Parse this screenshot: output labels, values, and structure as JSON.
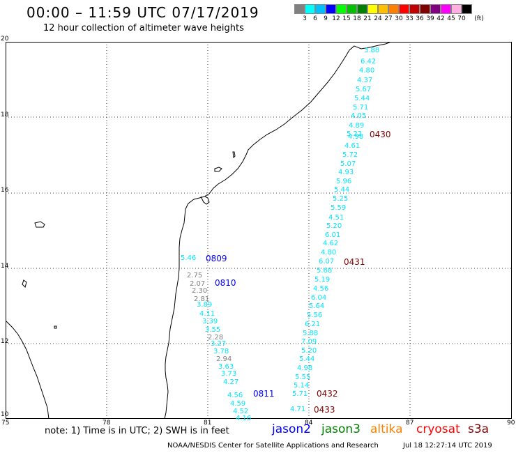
{
  "header": {
    "title": "00:00 – 11:59 UTC 07/17/2019",
    "subtitle": "12 hour collection of altimeter wave heights"
  },
  "legend": {
    "unit": "(ft)",
    "colors": [
      "#808080",
      "#00ffff",
      "#00bfff",
      "#0000ff",
      "#00ff00",
      "#00c000",
      "#008000",
      "#ffff00",
      "#ffc000",
      "#ff8000",
      "#ff0000",
      "#c00000",
      "#800000",
      "#800080",
      "#ff00ff",
      "#ffb0e0",
      "#000000"
    ],
    "values": [
      "3",
      "6",
      "9",
      "12",
      "15",
      "18",
      "21",
      "24",
      "27",
      "30",
      "33",
      "36",
      "39",
      "42",
      "45",
      "70"
    ]
  },
  "axes": {
    "lat_labels": [
      "20",
      "18",
      "16",
      "14",
      "12",
      "10"
    ],
    "lon_labels": [
      "75",
      "78",
      "81",
      "84",
      "87",
      "90"
    ]
  },
  "map": {
    "swh_values": [
      {
        "v": "3.88",
        "c": "#00e6ff"
      },
      {
        "v": "6.42",
        "c": "#00e6ff"
      },
      {
        "v": "4.80",
        "c": "#00e6ff"
      },
      {
        "v": "4.37",
        "c": "#00e6ff"
      },
      {
        "v": "5.67",
        "c": "#00e6ff"
      },
      {
        "v": "5.44",
        "c": "#00e6ff"
      },
      {
        "v": "5.71",
        "c": "#00e6ff"
      },
      {
        "v": "4.05",
        "c": "#00e6ff"
      },
      {
        "v": "4.89",
        "c": "#00e6ff"
      },
      {
        "v": "5.22",
        "c": "#00e6ff"
      },
      {
        "v": "4.98",
        "c": "#00e6ff"
      },
      {
        "v": "4.61",
        "c": "#00e6ff"
      },
      {
        "v": "5.72",
        "c": "#00e6ff"
      },
      {
        "v": "5.07",
        "c": "#00e6ff"
      },
      {
        "v": "4.93",
        "c": "#00e6ff"
      },
      {
        "v": "5.96",
        "c": "#00e6ff"
      },
      {
        "v": "5.44",
        "c": "#00e6ff"
      },
      {
        "v": "5.25",
        "c": "#00e6ff"
      },
      {
        "v": "5.59",
        "c": "#00e6ff"
      },
      {
        "v": "4.51",
        "c": "#00e6ff"
      },
      {
        "v": "5.20",
        "c": "#00e6ff"
      },
      {
        "v": "6.01",
        "c": "#00e6ff"
      },
      {
        "v": "4.62",
        "c": "#00e6ff"
      },
      {
        "v": "4.80",
        "c": "#00e6ff"
      },
      {
        "v": "6.07",
        "c": "#00e6ff"
      },
      {
        "v": "5.68",
        "c": "#00e6ff"
      },
      {
        "v": "5.19",
        "c": "#00e6ff"
      },
      {
        "v": "4.56",
        "c": "#00e6ff"
      },
      {
        "v": "6.04",
        "c": "#00e6ff"
      },
      {
        "v": "5.64",
        "c": "#00e6ff"
      },
      {
        "v": "5.56",
        "c": "#00e6ff"
      },
      {
        "v": "6.21",
        "c": "#00e6ff"
      },
      {
        "v": "5.88",
        "c": "#00e6ff"
      },
      {
        "v": "7.09",
        "c": "#00e6ff"
      },
      {
        "v": "5.20",
        "c": "#00e6ff"
      },
      {
        "v": "5.44",
        "c": "#00e6ff"
      },
      {
        "v": "4.98",
        "c": "#00e6ff"
      },
      {
        "v": "5.55",
        "c": "#00e6ff"
      },
      {
        "v": "5.14",
        "c": "#00e6ff"
      },
      {
        "v": "5.71",
        "c": "#00e6ff"
      },
      {
        "v": "4.71",
        "c": "#00e6ff"
      },
      {
        "v": "5.46",
        "c": "#00e6ff"
      },
      {
        "v": "2.75",
        "c": "#808080"
      },
      {
        "v": "2.07",
        "c": "#808080"
      },
      {
        "v": "2.30",
        "c": "#808080"
      },
      {
        "v": "2.81",
        "c": "#808080"
      },
      {
        "v": "3.89",
        "c": "#00e6ff"
      },
      {
        "v": "4.11",
        "c": "#00e6ff"
      },
      {
        "v": "3.39",
        "c": "#00e6ff"
      },
      {
        "v": "3.55",
        "c": "#00e6ff"
      },
      {
        "v": "2.28",
        "c": "#808080"
      },
      {
        "v": "3.27",
        "c": "#00e6ff"
      },
      {
        "v": "3.78",
        "c": "#00e6ff"
      },
      {
        "v": "2.94",
        "c": "#808080"
      },
      {
        "v": "3.63",
        "c": "#00e6ff"
      },
      {
        "v": "3.73",
        "c": "#00e6ff"
      },
      {
        "v": "4.27",
        "c": "#00e6ff"
      },
      {
        "v": "4.56",
        "c": "#00e6ff"
      },
      {
        "v": "4.59",
        "c": "#00e6ff"
      },
      {
        "v": "4.52",
        "c": "#00e6ff"
      },
      {
        "v": "4.16",
        "c": "#00e6ff"
      },
      {
        "v": "5.12",
        "c": "#00e6ff"
      }
    ],
    "pass_times": [
      {
        "v": "0430",
        "c": "#800000"
      },
      {
        "v": "0809",
        "c": "#0000ff"
      },
      {
        "v": "0810",
        "c": "#0000ff"
      },
      {
        "v": "0431",
        "c": "#800000"
      },
      {
        "v": "0811",
        "c": "#0000ff"
      },
      {
        "v": "0432",
        "c": "#800000"
      },
      {
        "v": "0433",
        "c": "#800000"
      }
    ]
  },
  "notes": {
    "text": "note:  1) Time is in UTC;  2) SWH is in feet",
    "satellites": [
      {
        "name": "jason2",
        "color": "#0000ff"
      },
      {
        "name": "jason3",
        "color": "#008000"
      },
      {
        "name": "altika",
        "color": "#ff8000"
      },
      {
        "name": "cryosat",
        "color": "#ff0000"
      },
      {
        "name": "s3a",
        "color": "#800000"
      }
    ]
  },
  "footer": {
    "credit": "NOAA/NESDIS Center for Satellite Applications and Research",
    "timestamp": "Jul 18 12:27:14 UTC 2019"
  }
}
